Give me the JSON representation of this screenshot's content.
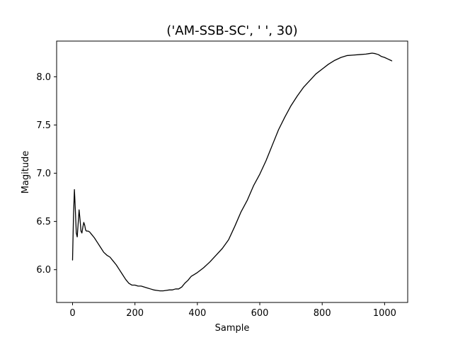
{
  "chart_data": {
    "type": "line",
    "title": "('AM-SSB-SC', '  ', 30)",
    "xlabel": "Sample",
    "ylabel": "Magitude",
    "xlim": [
      -51,
      1074
    ],
    "ylim": [
      5.66,
      8.37
    ],
    "xticks": [
      0,
      200,
      400,
      600,
      800,
      1000
    ],
    "yticks": [
      6.0,
      6.5,
      7.0,
      7.5,
      8.0
    ],
    "xtick_labels": [
      "0",
      "200",
      "400",
      "600",
      "800",
      "1000"
    ],
    "ytick_labels": [
      "6.0",
      "6.5",
      "7.0",
      "7.5",
      "8.0"
    ],
    "grid": false,
    "line_color": "#000000",
    "series": [
      {
        "x": [
          0,
          3,
          6,
          9,
          12,
          15,
          18,
          21,
          24,
          27,
          30,
          33,
          36,
          39,
          42,
          45,
          50,
          55,
          60,
          70,
          80,
          90,
          100,
          110,
          120,
          130,
          140,
          150,
          160,
          170,
          180,
          190,
          200,
          210,
          220,
          230,
          240,
          250,
          260,
          270,
          280,
          290,
          300,
          310,
          320,
          330,
          340,
          350,
          360,
          370,
          380,
          390,
          400,
          420,
          440,
          460,
          480,
          500,
          520,
          540,
          560,
          580,
          600,
          620,
          640,
          660,
          680,
          700,
          720,
          740,
          760,
          780,
          800,
          820,
          840,
          860,
          880,
          900,
          920,
          940,
          950,
          960,
          970,
          980,
          990,
          1000,
          1010,
          1020,
          1023
        ],
        "y": [
          6.1,
          6.55,
          6.83,
          6.62,
          6.38,
          6.34,
          6.48,
          6.62,
          6.52,
          6.4,
          6.38,
          6.44,
          6.49,
          6.46,
          6.41,
          6.4,
          6.4,
          6.39,
          6.37,
          6.33,
          6.28,
          6.23,
          6.18,
          6.15,
          6.13,
          6.09,
          6.05,
          6.0,
          5.95,
          5.9,
          5.86,
          5.84,
          5.84,
          5.83,
          5.83,
          5.82,
          5.81,
          5.8,
          5.79,
          5.785,
          5.78,
          5.78,
          5.785,
          5.79,
          5.79,
          5.8,
          5.8,
          5.82,
          5.86,
          5.89,
          5.93,
          5.95,
          5.97,
          6.02,
          6.08,
          6.15,
          6.22,
          6.31,
          6.45,
          6.6,
          6.72,
          6.87,
          6.99,
          7.13,
          7.29,
          7.45,
          7.58,
          7.7,
          7.8,
          7.89,
          7.96,
          8.03,
          8.08,
          8.13,
          8.17,
          8.2,
          8.22,
          8.225,
          8.23,
          8.235,
          8.24,
          8.245,
          8.24,
          8.23,
          8.21,
          8.2,
          8.185,
          8.17,
          8.165
        ]
      }
    ]
  }
}
